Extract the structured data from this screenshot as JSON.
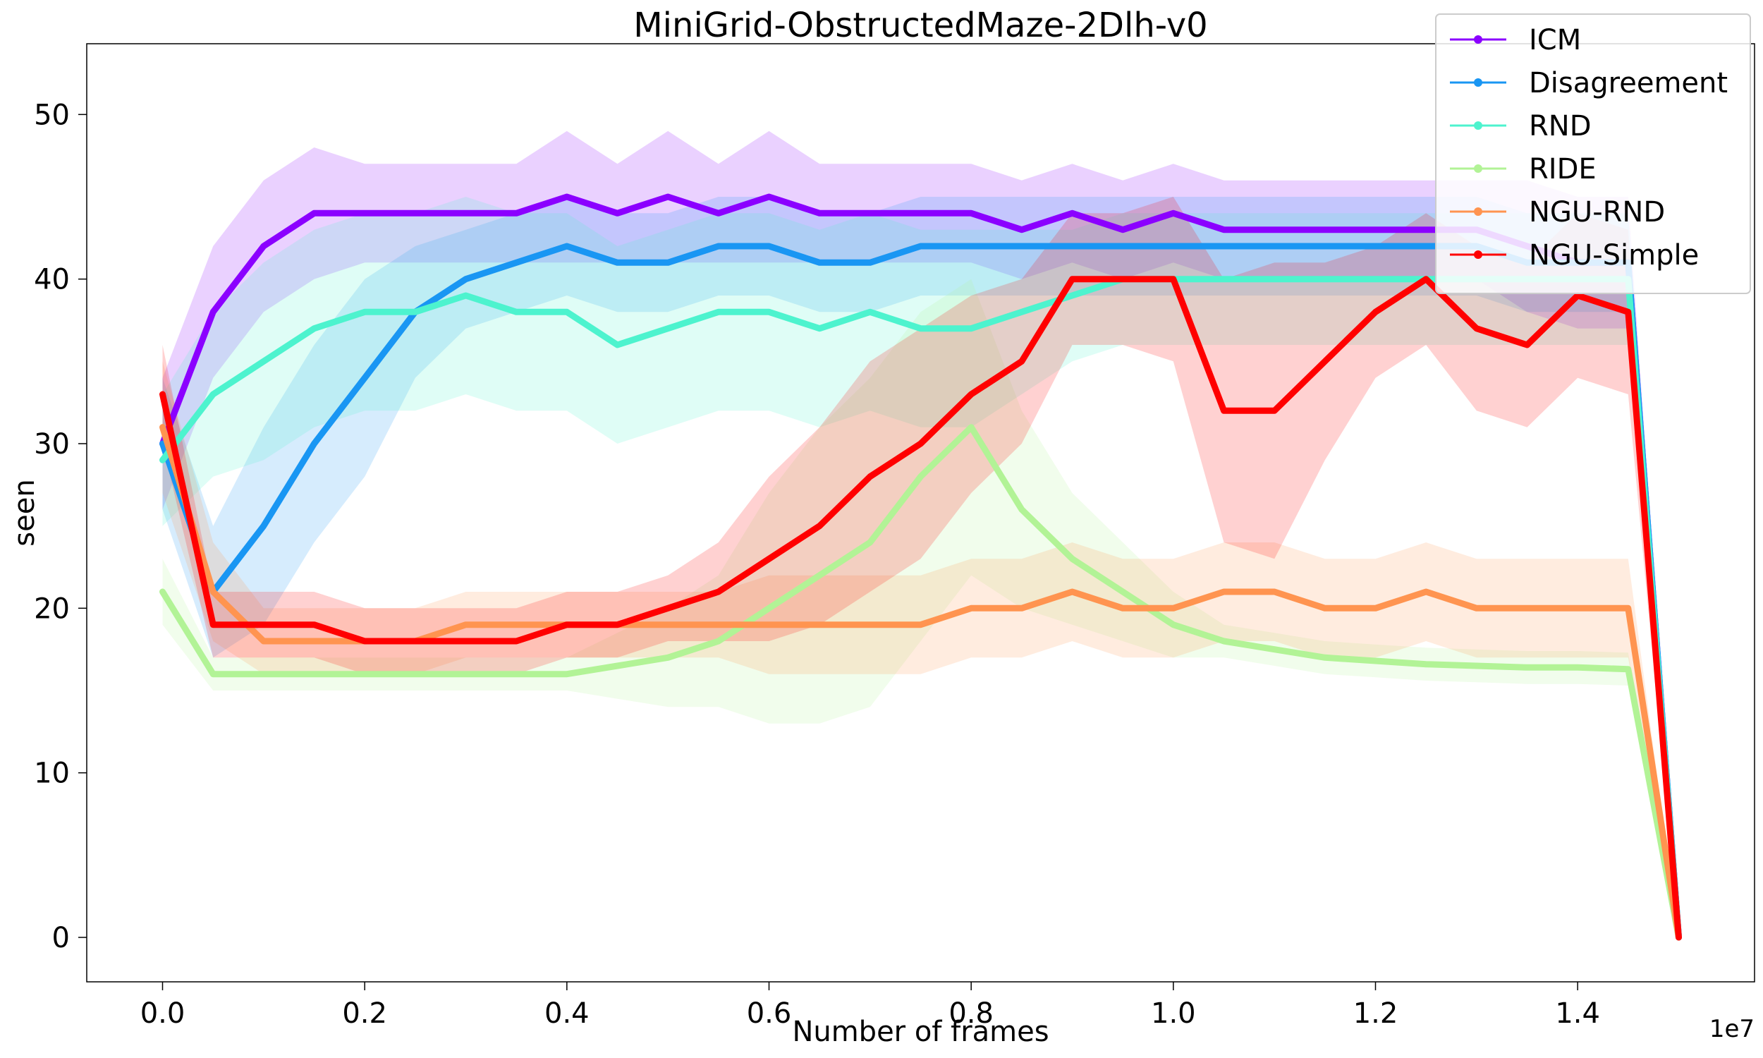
{
  "chart_data": {
    "type": "line",
    "title": "MiniGrid-ObstructedMaze-2Dlh-v0",
    "xlabel": "Number of frames",
    "ylabel": "seen",
    "x_offset_label": "1e7",
    "xlim": [
      -0.075,
      1.575
    ],
    "ylim": [
      -2.7,
      54.3
    ],
    "xticks": [
      0.0,
      0.2,
      0.4,
      0.6,
      0.8,
      1.0,
      1.2,
      1.4
    ],
    "xtick_labels": [
      "0.0",
      "0.2",
      "0.4",
      "0.6",
      "0.8",
      "1.0",
      "1.2",
      "1.4"
    ],
    "yticks": [
      0,
      10,
      20,
      30,
      40,
      50
    ],
    "ytick_labels": [
      "0",
      "10",
      "20",
      "30",
      "40",
      "50"
    ],
    "grid": false,
    "legend_position": "top-right",
    "x": [
      0.0,
      0.05,
      0.1,
      0.15,
      0.2,
      0.25,
      0.3,
      0.35,
      0.4,
      0.45,
      0.5,
      0.55,
      0.6,
      0.65,
      0.7,
      0.75,
      0.8,
      0.85,
      0.9,
      0.95,
      1.0,
      1.05,
      1.1,
      1.15,
      1.2,
      1.25,
      1.3,
      1.35,
      1.4,
      1.45,
      1.5
    ],
    "series": [
      {
        "name": "ICM",
        "color": "#8b00ff",
        "values": [
          30,
          38,
          42,
          44,
          44,
          44,
          44,
          44,
          45,
          44,
          45,
          44,
          45,
          44,
          44,
          44,
          44,
          43,
          44,
          43,
          44,
          43,
          43,
          43,
          43,
          43,
          43,
          42,
          41,
          41,
          0
        ],
        "band": [
          4,
          4,
          4,
          4,
          3,
          3,
          3,
          3,
          4,
          3,
          4,
          3,
          4,
          3,
          3,
          3,
          3,
          3,
          3,
          3,
          3,
          3,
          3,
          3,
          3,
          3,
          3,
          4,
          4,
          4,
          0
        ]
      },
      {
        "name": "Disagreement",
        "color": "#1996f3",
        "values": [
          30,
          21,
          25,
          30,
          34,
          38,
          40,
          41,
          42,
          41,
          41,
          42,
          42,
          41,
          41,
          42,
          42,
          42,
          42,
          42,
          42,
          42,
          42,
          42,
          42,
          42,
          42,
          41,
          41,
          41,
          0
        ],
        "band": [
          4,
          4,
          6,
          6,
          6,
          4,
          3,
          3,
          3,
          3,
          3,
          3,
          3,
          3,
          3,
          3,
          3,
          3,
          3,
          3,
          3,
          3,
          3,
          3,
          3,
          3,
          3,
          3,
          3,
          3,
          0
        ]
      },
      {
        "name": "RND",
        "color": "#4df3ce",
        "values": [
          29,
          33,
          35,
          37,
          38,
          38,
          39,
          38,
          38,
          36,
          37,
          38,
          38,
          37,
          38,
          37,
          37,
          38,
          39,
          40,
          40,
          40,
          40,
          40,
          40,
          40,
          40,
          40,
          40,
          40,
          0
        ],
        "band": [
          4,
          5,
          6,
          6,
          6,
          6,
          6,
          6,
          6,
          6,
          6,
          6,
          6,
          6,
          6,
          6,
          6,
          5,
          4,
          4,
          4,
          4,
          4,
          4,
          4,
          4,
          4,
          4,
          4,
          4,
          0
        ]
      },
      {
        "name": "RIDE",
        "color": "#b2f396",
        "values": [
          21,
          16,
          16,
          16,
          16,
          16,
          16,
          16,
          16,
          16.5,
          17,
          18,
          20,
          22,
          24,
          28,
          31,
          26,
          23,
          21,
          19,
          18,
          17.5,
          17,
          16.8,
          16.6,
          16.5,
          16.4,
          16.4,
          16.3,
          0
        ],
        "band": [
          2,
          1,
          1,
          1,
          1,
          1,
          1,
          1,
          1,
          2,
          3,
          4,
          7,
          9,
          10,
          10,
          9,
          6,
          4,
          3,
          2,
          1,
          1,
          1,
          1,
          1,
          1,
          1,
          1,
          1,
          0
        ]
      },
      {
        "name": "NGU-RND",
        "color": "#ff9450",
        "values": [
          31,
          21,
          18,
          18,
          18,
          18,
          19,
          19,
          19,
          19,
          19,
          19,
          19,
          19,
          19,
          19,
          20,
          20,
          21,
          20,
          20,
          21,
          21,
          20,
          20,
          21,
          20,
          20,
          20,
          20,
          0
        ],
        "band": [
          4,
          3,
          2,
          2,
          2,
          2,
          2,
          2,
          2,
          2,
          2,
          2,
          3,
          3,
          3,
          3,
          3,
          3,
          3,
          3,
          3,
          3,
          3,
          3,
          3,
          3,
          3,
          3,
          3,
          3,
          0
        ]
      },
      {
        "name": "NGU-Simple",
        "color": "#ff0000",
        "values": [
          33,
          19,
          19,
          19,
          18,
          18,
          18,
          18,
          19,
          19,
          20,
          21,
          23,
          25,
          28,
          30,
          33,
          35,
          40,
          40,
          40,
          32,
          32,
          35,
          38,
          40,
          37,
          36,
          39,
          38,
          0
        ],
        "band": [
          3,
          2,
          2,
          2,
          2,
          2,
          2,
          2,
          2,
          2,
          2,
          3,
          5,
          6,
          7,
          7,
          6,
          5,
          4,
          4,
          5,
          8,
          9,
          6,
          4,
          4,
          5,
          5,
          5,
          5,
          0
        ]
      }
    ]
  }
}
